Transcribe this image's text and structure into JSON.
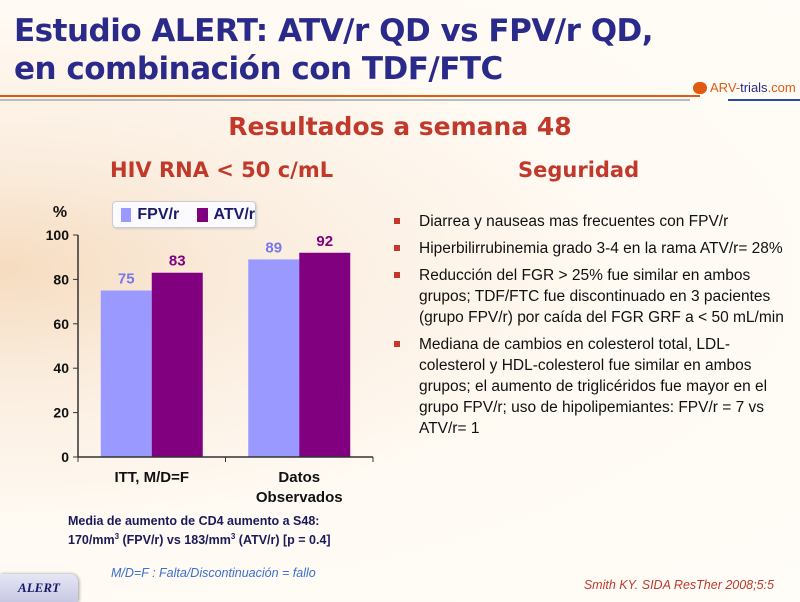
{
  "title_line1": "Estudio ALERT: ATV/r QD vs FPV/r QD,",
  "title_line2": "en combinación con TDF/FTC",
  "logo": {
    "prefix": "ARV-",
    "trials": "trials",
    "suffix": ".com"
  },
  "subtitle": "Resultados a semana 48",
  "left_heading": "HIV RNA < 50 c/mL",
  "right_heading": "Seguridad",
  "colors": {
    "fpv": "#9999ff",
    "atv": "#800080",
    "title": "#2a2a8a",
    "accent": "#c0392b"
  },
  "chart_data": {
    "type": "bar",
    "ylabel": "%",
    "ylim": [
      0,
      100
    ],
    "yticks": [
      "0",
      "20",
      "40",
      "60",
      "80",
      "100"
    ],
    "categories": [
      "ITT, M/D=F",
      "Datos Observados"
    ],
    "category_lines": [
      [
        "ITT, M/D=F"
      ],
      [
        "Datos",
        "Observados"
      ]
    ],
    "series": [
      {
        "name": "FPV/r",
        "values": [
          75,
          89
        ],
        "labels": [
          "75",
          "89"
        ]
      },
      {
        "name": "ATV/r",
        "values": [
          83,
          92
        ],
        "labels": [
          "83",
          "92"
        ]
      }
    ],
    "legend": "top"
  },
  "bullets": [
    "Diarrea y nauseas mas frecuentes con FPV/r",
    "Hiperbilirrubinemia grado 3-4 en la rama ATV/r= 28%",
    "Reducción del FGR > 25% fue similar en ambos grupos; TDF/FTC fue discontinuado en 3 pacientes (grupo FPV/r) por caída del FGR GRF a < 50 mL/min",
    "Mediana de cambios en colesterol total, LDL- colesterol y HDL-colesterol fue similar en ambos grupos; el aumento de triglicéridos fue mayor en el grupo FPV/r; uso de hipolipemiantes: FPV/r = 7 vs ATV/r= 1"
  ],
  "cd4": {
    "line1": "Media de aumento de  CD4 aumento a S48:",
    "a": "170/mm",
    "sup": "3",
    "b": " (FPV/r) vs 183/mm",
    "c": " (ATV/r) [p = 0.4]"
  },
  "footnote": "M/D=F : Falta/Discontinuación = fallo",
  "badge": "ALERT",
  "reference": "Smith KY. SIDA ResTher 2008;5:5"
}
